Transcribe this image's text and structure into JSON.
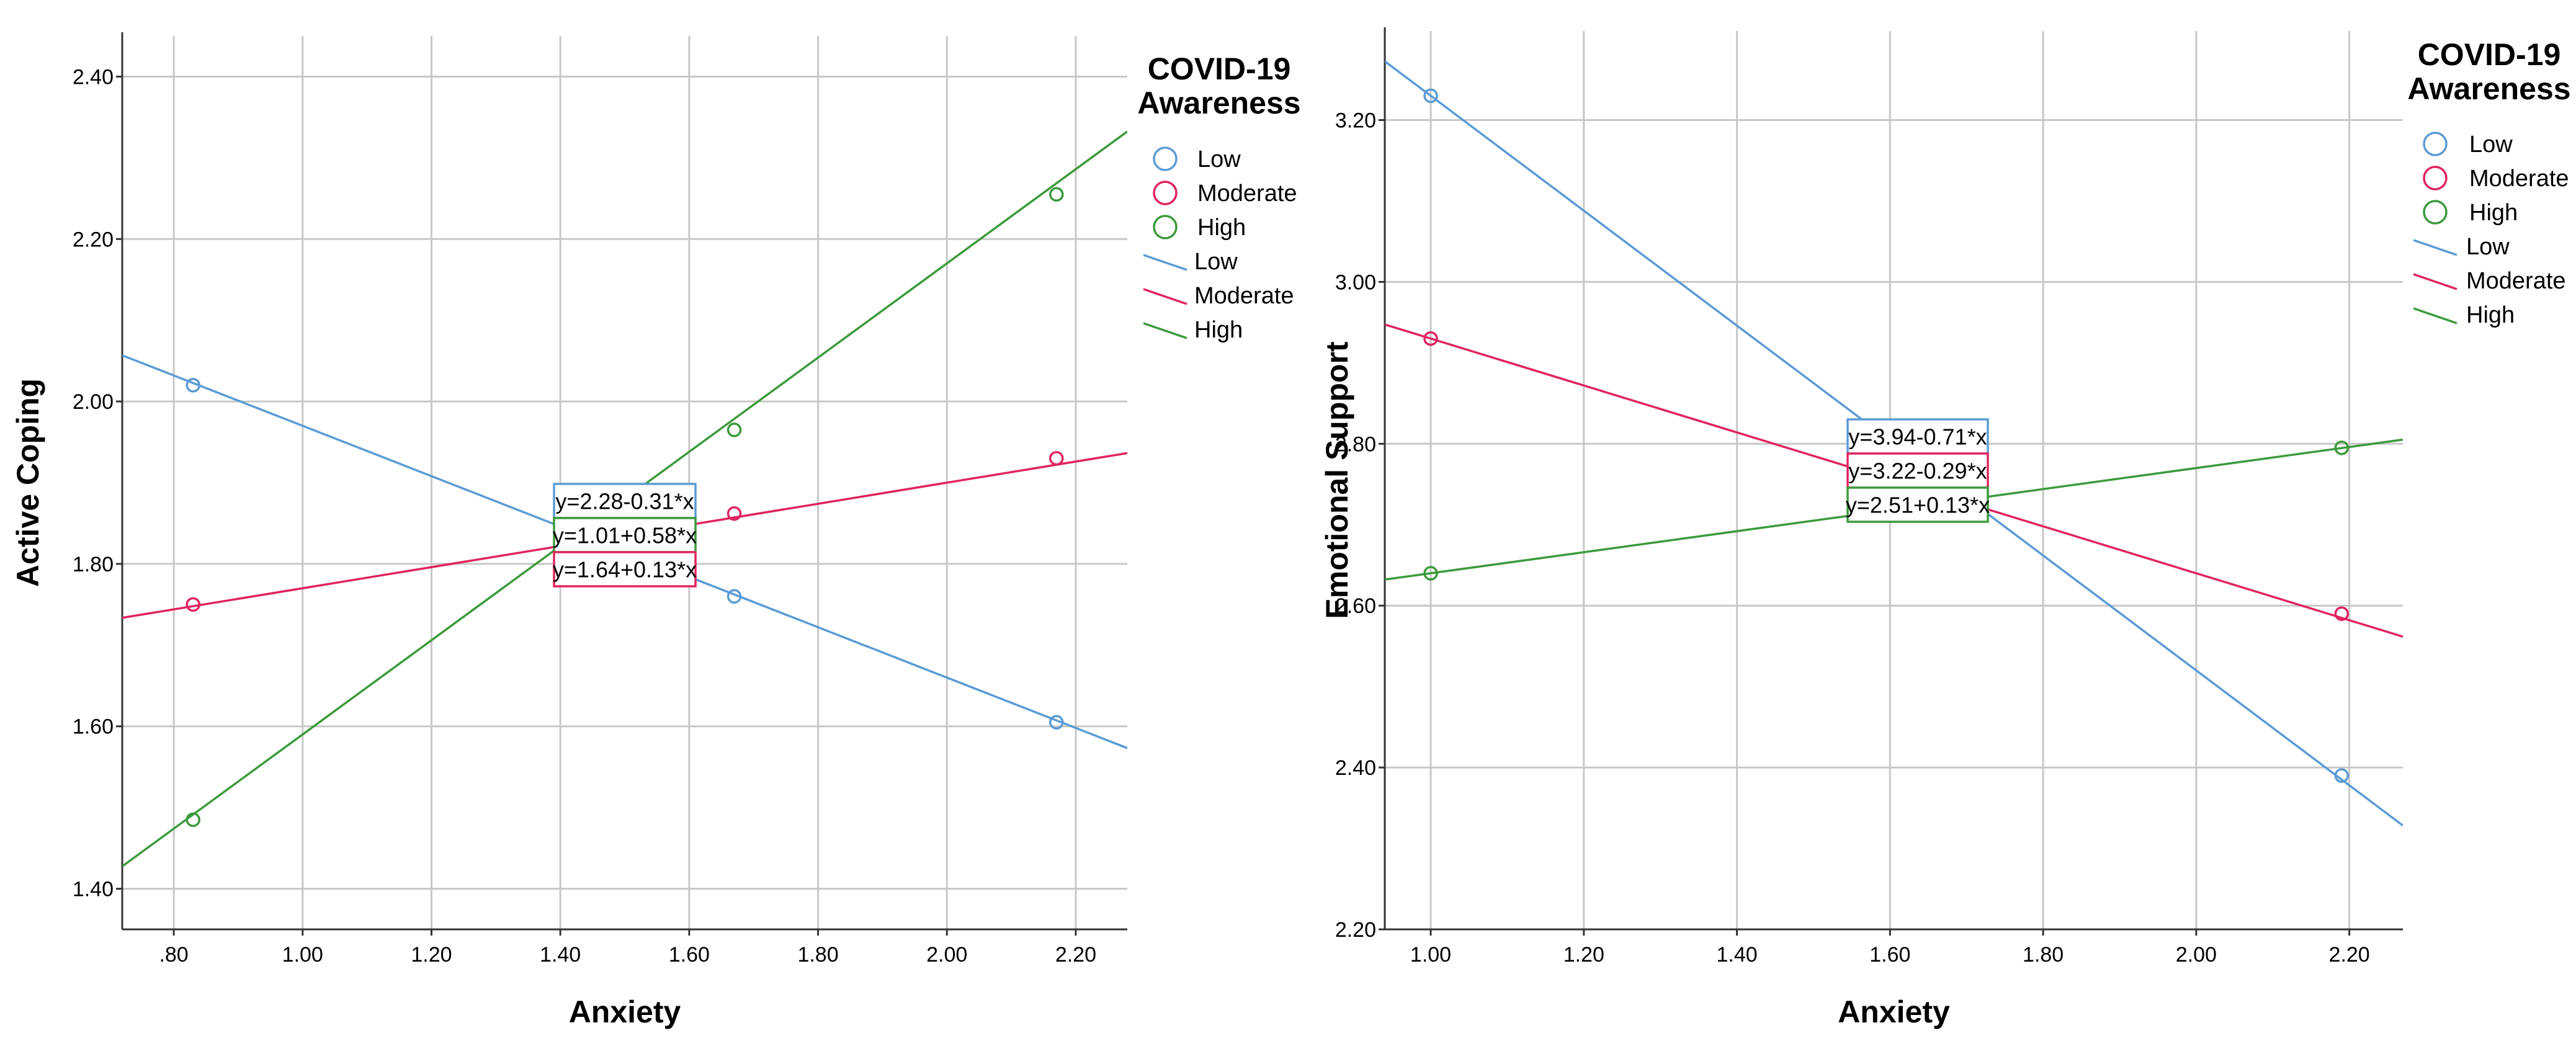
{
  "chart_data": [
    {
      "type": "scatter",
      "xlabel": "Anxiety",
      "ylabel": "Active Coping",
      "xlim": [
        0.72,
        2.28
      ],
      "ylim": [
        1.35,
        2.45
      ],
      "x_ticks": [
        0.8,
        1.0,
        1.2,
        1.4,
        1.6,
        1.8,
        2.0,
        2.2
      ],
      "x_tick_labels": [
        ".80",
        "1.00",
        "1.20",
        "1.40",
        "1.60",
        "1.80",
        "2.00",
        "2.20"
      ],
      "y_ticks": [
        1.4,
        1.6,
        1.8,
        2.0,
        2.2,
        2.4
      ],
      "y_tick_labels": [
        "1.40",
        "1.60",
        "1.80",
        "2.00",
        "2.20",
        "2.40"
      ],
      "grid": true,
      "legend": {
        "title_lines": [
          "COVID-19",
          "Awareness"
        ],
        "position": "right",
        "marker_entries": [
          "Low",
          "Moderate",
          "High"
        ],
        "line_entries": [
          "Low",
          "Moderate",
          "High"
        ]
      },
      "series": [
        {
          "name": "Low",
          "color": "#5b9bd5",
          "points": [
            {
              "x": 0.83,
              "y": 2.02
            },
            {
              "x": 1.67,
              "y": 1.76
            },
            {
              "x": 2.17,
              "y": 1.605
            }
          ],
          "intercept": 2.28,
          "slope": -0.31,
          "equation": "y=2.28-0.31*x"
        },
        {
          "name": "Moderate",
          "color": "#e0245e",
          "points": [
            {
              "x": 0.83,
              "y": 1.75
            },
            {
              "x": 1.67,
              "y": 1.862
            },
            {
              "x": 2.17,
              "y": 1.93
            }
          ],
          "intercept": 1.64,
          "slope": 0.13,
          "equation": "y=1.64+0.13*x"
        },
        {
          "name": "High",
          "color": "#3c9a3c",
          "points": [
            {
              "x": 0.83,
              "y": 1.485
            },
            {
              "x": 1.67,
              "y": 1.965
            },
            {
              "x": 2.17,
              "y": 2.255
            }
          ],
          "intercept": 1.01,
          "slope": 0.58,
          "equation": "y=1.01+0.58*x"
        }
      ],
      "equation_box_order": [
        "Low",
        "High",
        "Moderate"
      ]
    },
    {
      "type": "scatter",
      "xlabel": "Anxiety",
      "ylabel": "Emotional Support",
      "xlim": [
        0.94,
        2.27
      ],
      "ylim": [
        2.2,
        3.31
      ],
      "x_ticks": [
        1.0,
        1.2,
        1.4,
        1.6,
        1.8,
        2.0,
        2.2
      ],
      "x_tick_labels": [
        "1.00",
        "1.20",
        "1.40",
        "1.60",
        "1.80",
        "2.00",
        "2.20"
      ],
      "y_ticks": [
        2.2,
        2.4,
        2.6,
        2.8,
        3.0,
        3.2
      ],
      "y_tick_labels": [
        "2.20",
        "2.40",
        "2.60",
        "2.80",
        "3.00",
        "3.20"
      ],
      "grid": true,
      "legend": {
        "title_lines": [
          "COVID-19",
          "Awareness"
        ],
        "position": "right",
        "marker_entries": [
          "Low",
          "Moderate",
          "High"
        ],
        "line_entries": [
          "Low",
          "Moderate",
          "High"
        ]
      },
      "series": [
        {
          "name": "Low",
          "color": "#5b9bd5",
          "points": [
            {
              "x": 1.0,
              "y": 3.23
            },
            {
              "x": 2.19,
              "y": 2.39
            }
          ],
          "intercept": 3.94,
          "slope": -0.71,
          "equation": "y=3.94-0.71*x"
        },
        {
          "name": "Moderate",
          "color": "#e0245e",
          "points": [
            {
              "x": 1.0,
              "y": 2.93
            },
            {
              "x": 2.19,
              "y": 2.59
            }
          ],
          "intercept": 3.22,
          "slope": -0.29,
          "equation": "y=3.22-0.29*x"
        },
        {
          "name": "High",
          "color": "#3c9a3c",
          "points": [
            {
              "x": 1.0,
              "y": 2.64
            },
            {
              "x": 2.19,
              "y": 2.795
            }
          ],
          "intercept": 2.51,
          "slope": 0.13,
          "equation": "y=2.51+0.13*x"
        }
      ],
      "equation_box_order": [
        "Low",
        "Moderate",
        "High"
      ]
    }
  ]
}
